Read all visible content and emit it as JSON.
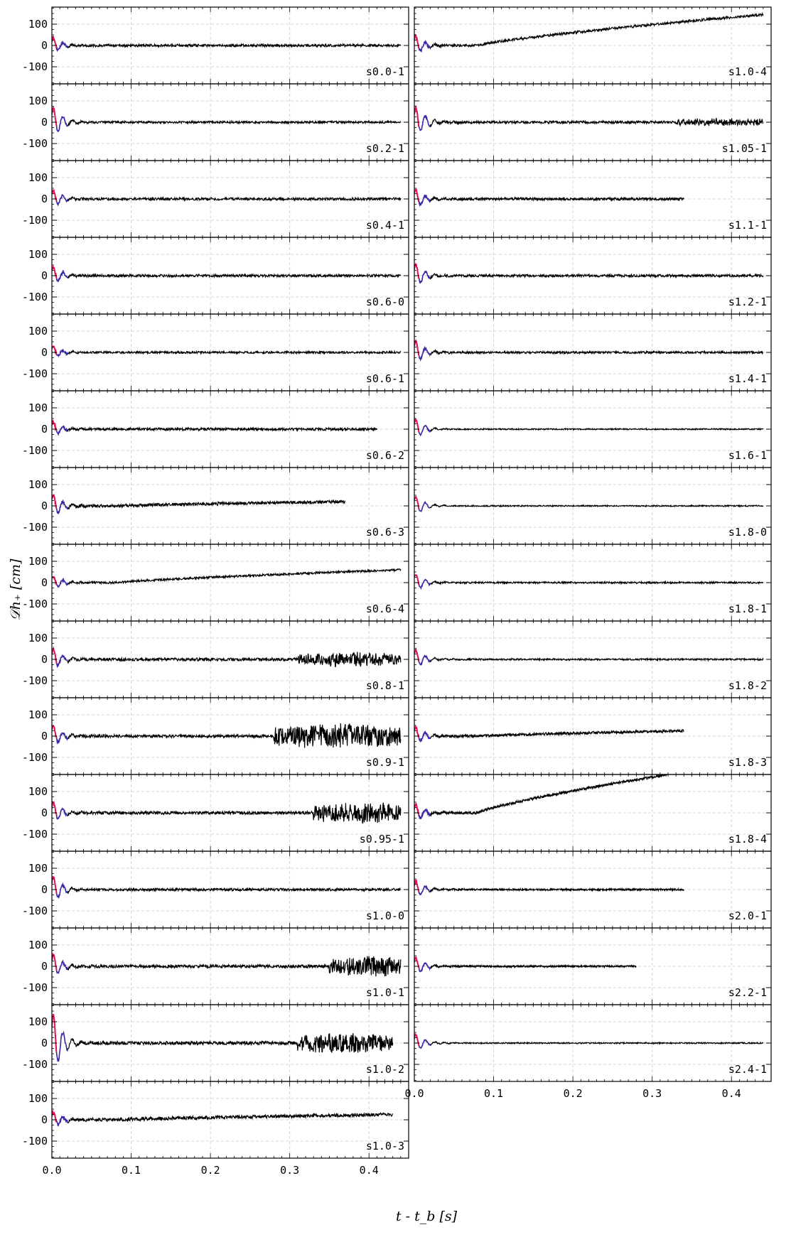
{
  "figure": {
    "ylabel": "𝒟h₊ [cm]",
    "xlabel": "t - t_b [s]"
  },
  "chart_data": {
    "type": "line",
    "xlabel": "t - t_b [s]",
    "ylabel": "𝒟h₊ [cm]",
    "xlim": [
      0.0,
      0.45
    ],
    "ylim": [
      -180,
      180
    ],
    "xticks": [
      "0.0",
      "0.1",
      "0.2",
      "0.3",
      "0.4"
    ],
    "yticks": [
      "100",
      "0",
      "-100"
    ],
    "grid": true,
    "colors": {
      "prebounce": "#e0105a",
      "early": "#3a2aa8",
      "main": "#000000"
    },
    "panels": [
      {
        "name": "s0.0-1",
        "column": "left",
        "t_end": 0.44,
        "noise": 6,
        "spike": 40,
        "drift": 0,
        "bursts": []
      },
      {
        "name": "s0.2-1",
        "column": "left",
        "t_end": 0.44,
        "noise": 5,
        "spike": 80,
        "drift": 0,
        "bursts": []
      },
      {
        "name": "s0.4-1",
        "column": "left",
        "t_end": 0.44,
        "noise": 6,
        "spike": 45,
        "drift": 0,
        "bursts": []
      },
      {
        "name": "s0.6-0",
        "column": "left",
        "t_end": 0.44,
        "noise": 6,
        "spike": 45,
        "drift": 0,
        "bursts": []
      },
      {
        "name": "s0.6-1",
        "column": "left",
        "t_end": 0.44,
        "noise": 5,
        "spike": 30,
        "drift": 0,
        "bursts": []
      },
      {
        "name": "s0.6-2",
        "column": "left",
        "t_end": 0.41,
        "noise": 6,
        "spike": 40,
        "drift": 0,
        "bursts": []
      },
      {
        "name": "s0.6-3",
        "column": "left",
        "t_end": 0.37,
        "noise": 7,
        "spike": 60,
        "drift": 20,
        "bursts": []
      },
      {
        "name": "s0.6-4",
        "column": "left",
        "t_end": 0.44,
        "noise": 5,
        "spike": 35,
        "drift": 60,
        "bursts": []
      },
      {
        "name": "s0.8-1",
        "column": "left",
        "t_end": 0.44,
        "noise": 7,
        "spike": 55,
        "drift": 0,
        "bursts": [
          [
            0.31,
            0.45,
            30
          ]
        ]
      },
      {
        "name": "s0.9-1",
        "column": "left",
        "t_end": 0.44,
        "noise": 7,
        "spike": 55,
        "drift": 0,
        "bursts": [
          [
            0.28,
            0.45,
            55
          ]
        ]
      },
      {
        "name": "s0.95-1",
        "column": "left",
        "t_end": 0.44,
        "noise": 7,
        "spike": 55,
        "drift": 0,
        "bursts": [
          [
            0.33,
            0.45,
            45
          ]
        ]
      },
      {
        "name": "s1.0-0",
        "column": "left",
        "t_end": 0.44,
        "noise": 6,
        "spike": 70,
        "drift": 0,
        "bursts": []
      },
      {
        "name": "s1.0-1",
        "column": "left",
        "t_end": 0.44,
        "noise": 7,
        "spike": 60,
        "drift": 0,
        "bursts": [
          [
            0.35,
            0.45,
            45
          ]
        ]
      },
      {
        "name": "s1.0-2",
        "column": "left",
        "t_end": 0.43,
        "noise": 8,
        "spike": 160,
        "drift": 0,
        "bursts": [
          [
            0.31,
            0.43,
            45
          ]
        ]
      },
      {
        "name": "s1.0-3",
        "column": "left",
        "t_end": 0.43,
        "noise": 8,
        "spike": 40,
        "drift": 25,
        "bursts": []
      },
      {
        "name": "s1.0-4",
        "column": "right",
        "t_end": 0.44,
        "noise": 6,
        "spike": 50,
        "drift": 145,
        "bursts": []
      },
      {
        "name": "s1.05-1",
        "column": "right",
        "t_end": 0.44,
        "noise": 6,
        "spike": 80,
        "drift": 0,
        "bursts": [
          [
            0.33,
            0.45,
            15
          ]
        ]
      },
      {
        "name": "s1.1-1",
        "column": "right",
        "t_end": 0.34,
        "noise": 6,
        "spike": 50,
        "drift": 0,
        "bursts": []
      },
      {
        "name": "s1.2-1",
        "column": "right",
        "t_end": 0.44,
        "noise": 6,
        "spike": 60,
        "drift": 0,
        "bursts": []
      },
      {
        "name": "s1.4-1",
        "column": "right",
        "t_end": 0.44,
        "noise": 5,
        "spike": 60,
        "drift": 0,
        "bursts": []
      },
      {
        "name": "s1.6-1",
        "column": "right",
        "t_end": 0.44,
        "noise": 3,
        "spike": 50,
        "drift": 0,
        "bursts": []
      },
      {
        "name": "s1.8-0",
        "column": "right",
        "t_end": 0.44,
        "noise": 3,
        "spike": 50,
        "drift": 0,
        "bursts": []
      },
      {
        "name": "s1.8-1",
        "column": "right",
        "t_end": 0.44,
        "noise": 4,
        "spike": 45,
        "drift": 0,
        "bursts": []
      },
      {
        "name": "s1.8-2",
        "column": "right",
        "t_end": 0.44,
        "noise": 4,
        "spike": 50,
        "drift": 0,
        "bursts": []
      },
      {
        "name": "s1.8-3",
        "column": "right",
        "t_end": 0.34,
        "noise": 6,
        "spike": 45,
        "drift": 25,
        "bursts": []
      },
      {
        "name": "s1.8-4",
        "column": "right",
        "t_end": 0.32,
        "noise": 6,
        "spike": 45,
        "drift": 180,
        "bursts": []
      },
      {
        "name": "s2.0-1",
        "column": "right",
        "t_end": 0.34,
        "noise": 4,
        "spike": 45,
        "drift": 0,
        "bursts": []
      },
      {
        "name": "s2.2-1",
        "column": "right",
        "t_end": 0.28,
        "noise": 4,
        "spike": 45,
        "drift": 0,
        "bursts": []
      },
      {
        "name": "s2.4-1",
        "column": "right",
        "t_end": 0.44,
        "noise": 3,
        "spike": 45,
        "drift": 0,
        "bursts": []
      }
    ]
  }
}
